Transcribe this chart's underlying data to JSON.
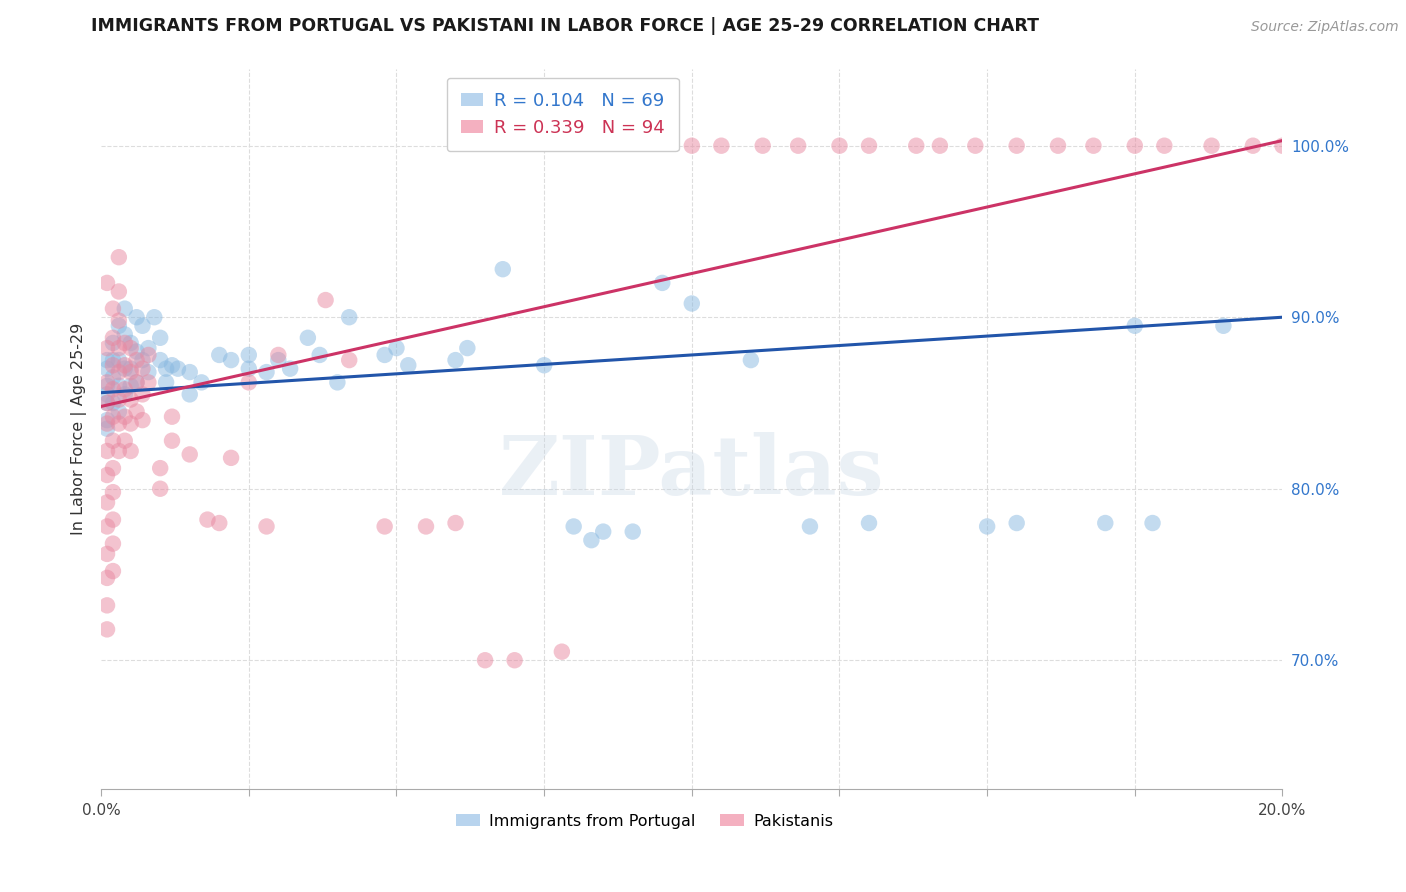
{
  "title": "IMMIGRANTS FROM PORTUGAL VS PAKISTANI IN LABOR FORCE | AGE 25-29 CORRELATION CHART",
  "source": "Source: ZipAtlas.com",
  "ylabel": "In Labor Force | Age 25-29",
  "watermark": "ZIPatlas",
  "xlim": [
    0.0,
    0.2
  ],
  "ylim": [
    0.625,
    1.045
  ],
  "yticks": [
    0.7,
    0.8,
    0.9,
    1.0
  ],
  "xtick_positions": [
    0.0,
    0.025,
    0.05,
    0.075,
    0.1,
    0.125,
    0.15,
    0.175,
    0.2
  ],
  "blue_color": "#88b8e0",
  "pink_color": "#e888a0",
  "blue_line_color": "#2255aa",
  "pink_line_color": "#cc3366",
  "blue_label_R": "0.104",
  "blue_label_N": "69",
  "pink_label_R": "0.339",
  "pink_label_N": "94",
  "blue_text_color": "#3377cc",
  "pink_text_color": "#cc3355",
  "yticklabel_color": "#3377cc",
  "blue_points": [
    [
      0.001,
      0.855
    ],
    [
      0.001,
      0.87
    ],
    [
      0.001,
      0.84
    ],
    [
      0.001,
      0.86
    ],
    [
      0.001,
      0.875
    ],
    [
      0.001,
      0.85
    ],
    [
      0.001,
      0.835
    ],
    [
      0.002,
      0.885
    ],
    [
      0.002,
      0.865
    ],
    [
      0.002,
      0.875
    ],
    [
      0.002,
      0.85
    ],
    [
      0.003,
      0.895
    ],
    [
      0.003,
      0.875
    ],
    [
      0.003,
      0.86
    ],
    [
      0.003,
      0.845
    ],
    [
      0.004,
      0.905
    ],
    [
      0.004,
      0.89
    ],
    [
      0.004,
      0.87
    ],
    [
      0.004,
      0.855
    ],
    [
      0.005,
      0.885
    ],
    [
      0.005,
      0.87
    ],
    [
      0.005,
      0.86
    ],
    [
      0.006,
      0.9
    ],
    [
      0.006,
      0.88
    ],
    [
      0.006,
      0.862
    ],
    [
      0.007,
      0.895
    ],
    [
      0.007,
      0.875
    ],
    [
      0.008,
      0.882
    ],
    [
      0.008,
      0.868
    ],
    [
      0.009,
      0.9
    ],
    [
      0.01,
      0.888
    ],
    [
      0.01,
      0.875
    ],
    [
      0.011,
      0.87
    ],
    [
      0.011,
      0.862
    ],
    [
      0.012,
      0.872
    ],
    [
      0.013,
      0.87
    ],
    [
      0.015,
      0.868
    ],
    [
      0.015,
      0.855
    ],
    [
      0.017,
      0.862
    ],
    [
      0.02,
      0.878
    ],
    [
      0.022,
      0.875
    ],
    [
      0.025,
      0.878
    ],
    [
      0.025,
      0.87
    ],
    [
      0.028,
      0.868
    ],
    [
      0.03,
      0.875
    ],
    [
      0.032,
      0.87
    ],
    [
      0.035,
      0.888
    ],
    [
      0.037,
      0.878
    ],
    [
      0.04,
      0.862
    ],
    [
      0.042,
      0.9
    ],
    [
      0.048,
      0.878
    ],
    [
      0.05,
      0.882
    ],
    [
      0.052,
      0.872
    ],
    [
      0.06,
      0.875
    ],
    [
      0.062,
      0.882
    ],
    [
      0.068,
      0.928
    ],
    [
      0.075,
      0.872
    ],
    [
      0.08,
      0.778
    ],
    [
      0.083,
      0.77
    ],
    [
      0.085,
      0.775
    ],
    [
      0.09,
      0.775
    ],
    [
      0.095,
      0.92
    ],
    [
      0.1,
      0.908
    ],
    [
      0.11,
      0.875
    ],
    [
      0.12,
      0.778
    ],
    [
      0.13,
      0.78
    ],
    [
      0.15,
      0.778
    ],
    [
      0.155,
      0.78
    ],
    [
      0.17,
      0.78
    ],
    [
      0.175,
      0.895
    ],
    [
      0.178,
      0.78
    ],
    [
      0.19,
      0.895
    ]
  ],
  "pink_points": [
    [
      0.001,
      0.882
    ],
    [
      0.001,
      0.92
    ],
    [
      0.001,
      0.862
    ],
    [
      0.001,
      0.85
    ],
    [
      0.001,
      0.838
    ],
    [
      0.001,
      0.822
    ],
    [
      0.001,
      0.808
    ],
    [
      0.001,
      0.792
    ],
    [
      0.001,
      0.778
    ],
    [
      0.001,
      0.762
    ],
    [
      0.001,
      0.748
    ],
    [
      0.001,
      0.732
    ],
    [
      0.001,
      0.718
    ],
    [
      0.002,
      0.905
    ],
    [
      0.002,
      0.888
    ],
    [
      0.002,
      0.872
    ],
    [
      0.002,
      0.858
    ],
    [
      0.002,
      0.842
    ],
    [
      0.002,
      0.828
    ],
    [
      0.002,
      0.812
    ],
    [
      0.002,
      0.798
    ],
    [
      0.002,
      0.782
    ],
    [
      0.002,
      0.768
    ],
    [
      0.002,
      0.752
    ],
    [
      0.003,
      0.935
    ],
    [
      0.003,
      0.915
    ],
    [
      0.003,
      0.898
    ],
    [
      0.003,
      0.882
    ],
    [
      0.003,
      0.868
    ],
    [
      0.003,
      0.852
    ],
    [
      0.003,
      0.838
    ],
    [
      0.003,
      0.822
    ],
    [
      0.004,
      0.885
    ],
    [
      0.004,
      0.872
    ],
    [
      0.004,
      0.858
    ],
    [
      0.004,
      0.842
    ],
    [
      0.004,
      0.828
    ],
    [
      0.005,
      0.882
    ],
    [
      0.005,
      0.868
    ],
    [
      0.005,
      0.852
    ],
    [
      0.005,
      0.838
    ],
    [
      0.005,
      0.822
    ],
    [
      0.006,
      0.875
    ],
    [
      0.006,
      0.862
    ],
    [
      0.006,
      0.845
    ],
    [
      0.007,
      0.87
    ],
    [
      0.007,
      0.855
    ],
    [
      0.007,
      0.84
    ],
    [
      0.008,
      0.878
    ],
    [
      0.008,
      0.862
    ],
    [
      0.01,
      0.812
    ],
    [
      0.01,
      0.8
    ],
    [
      0.012,
      0.842
    ],
    [
      0.012,
      0.828
    ],
    [
      0.015,
      0.82
    ],
    [
      0.018,
      0.782
    ],
    [
      0.02,
      0.78
    ],
    [
      0.022,
      0.818
    ],
    [
      0.025,
      0.862
    ],
    [
      0.028,
      0.778
    ],
    [
      0.03,
      0.878
    ],
    [
      0.038,
      0.91
    ],
    [
      0.042,
      0.875
    ],
    [
      0.048,
      0.778
    ],
    [
      0.055,
      0.778
    ],
    [
      0.06,
      0.78
    ],
    [
      0.065,
      0.7
    ],
    [
      0.07,
      0.7
    ],
    [
      0.078,
      0.705
    ],
    [
      0.1,
      1.0
    ],
    [
      0.105,
      1.0
    ],
    [
      0.112,
      1.0
    ],
    [
      0.118,
      1.0
    ],
    [
      0.125,
      1.0
    ],
    [
      0.13,
      1.0
    ],
    [
      0.138,
      1.0
    ],
    [
      0.142,
      1.0
    ],
    [
      0.148,
      1.0
    ],
    [
      0.155,
      1.0
    ],
    [
      0.162,
      1.0
    ],
    [
      0.168,
      1.0
    ],
    [
      0.175,
      1.0
    ],
    [
      0.18,
      1.0
    ],
    [
      0.188,
      1.0
    ],
    [
      0.195,
      1.0
    ],
    [
      0.2,
      1.0
    ]
  ]
}
